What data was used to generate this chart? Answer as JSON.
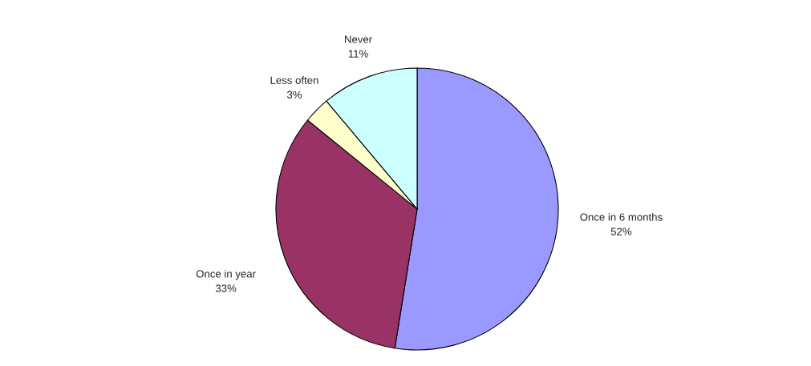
{
  "chart_data": {
    "type": "pie",
    "categories": [
      "Once in 6 months",
      "Once in year",
      "Less often",
      "Never"
    ],
    "values": [
      52,
      33,
      3,
      11
    ],
    "value_labels": [
      "52%",
      "33%",
      "3%",
      "11%"
    ],
    "colors": [
      "#9999ff",
      "#993366",
      "#ffffcc",
      "#ccffff"
    ]
  }
}
